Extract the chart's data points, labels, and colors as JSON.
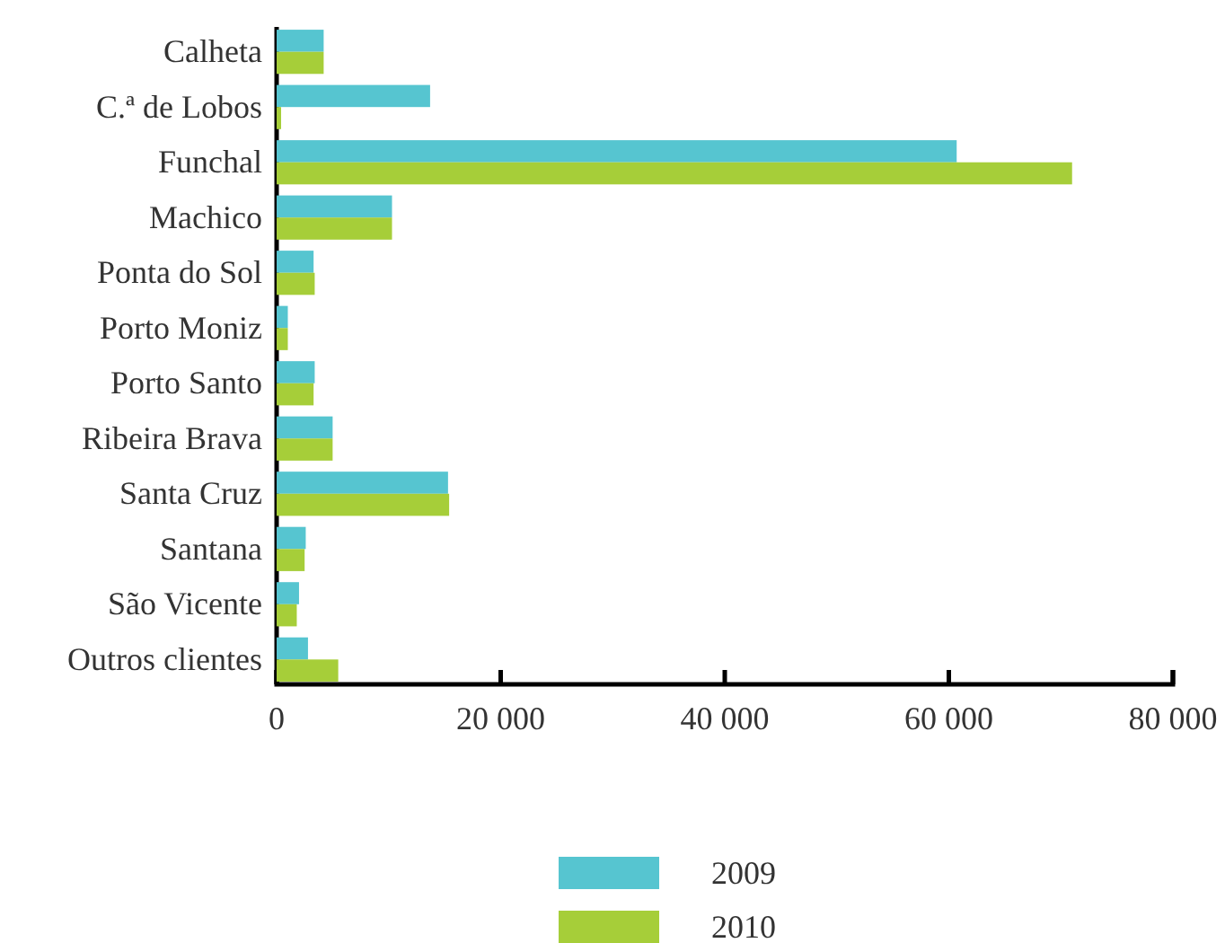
{
  "chart_data": {
    "type": "bar",
    "orientation": "horizontal",
    "categories": [
      "Calheta",
      "C.ª de Lobos",
      "Funchal",
      "Machico",
      "Ponta do Sol",
      "Porto Moniz",
      "Porto Santo",
      "Ribeira Brava",
      "Santa Cruz",
      "Santana",
      "São Vicente",
      "Outros clientes"
    ],
    "series": [
      {
        "name": "2009",
        "color": "#56c5d0",
        "values": [
          4200,
          13700,
          60700,
          10300,
          3300,
          1000,
          3400,
          5000,
          15300,
          2600,
          2000,
          2800
        ]
      },
      {
        "name": "2010",
        "color": "#a6ce39",
        "values": [
          4200,
          400,
          71000,
          10300,
          3400,
          1000,
          3300,
          5000,
          15400,
          2500,
          1800,
          5500
        ]
      }
    ],
    "xlim": [
      0,
      80000
    ],
    "xticks": [
      0,
      {
        "value": 20000,
        "label": "20 000"
      },
      {
        "value": 40000,
        "label": "40 000"
      },
      {
        "value": 60000,
        "label": "60 000"
      },
      {
        "value": 80000,
        "label": "80 000"
      }
    ],
    "grid": false,
    "legend": "bottom"
  }
}
